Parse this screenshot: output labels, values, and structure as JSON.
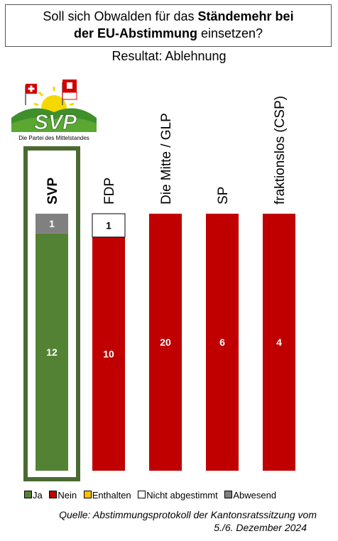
{
  "header": {
    "title_part1": "Soll sich Obwalden für das ",
    "title_bold1": "Ständemehr bei",
    "title_bold2": "der EU-Abstimmung",
    "title_part2": " einsetzen?",
    "result": "Resultat: Ablehnung"
  },
  "logo": {
    "text": "SVP",
    "tagline": "Die Partei des Mittelstandes"
  },
  "chart_data": {
    "type": "bar",
    "stacked": true,
    "categories": [
      "SVP",
      "FDP",
      "Die Mitte / GLP",
      "SP",
      "fraktionslos (CSP)"
    ],
    "highlight": "SVP",
    "series": [
      {
        "name": "Ja",
        "color": "#548235",
        "values": [
          12,
          0,
          0,
          0,
          0
        ]
      },
      {
        "name": "Nein",
        "color": "#c00000",
        "values": [
          0,
          10,
          20,
          6,
          4
        ]
      },
      {
        "name": "Enthalten",
        "color": "#ffc000",
        "values": [
          0,
          0,
          0,
          0,
          0
        ]
      },
      {
        "name": "Nicht abgestimmt",
        "color": "#ffffff",
        "values": [
          0,
          1,
          0,
          0,
          0
        ]
      },
      {
        "name": "Abwesend",
        "color": "#808080",
        "values": [
          1,
          0,
          0,
          0,
          0
        ]
      }
    ]
  },
  "source": {
    "line1": "Quelle: Abstimmungsprotokoll der Kantonsratssitzung vom",
    "line2": "5./6. Dezember 2024"
  }
}
